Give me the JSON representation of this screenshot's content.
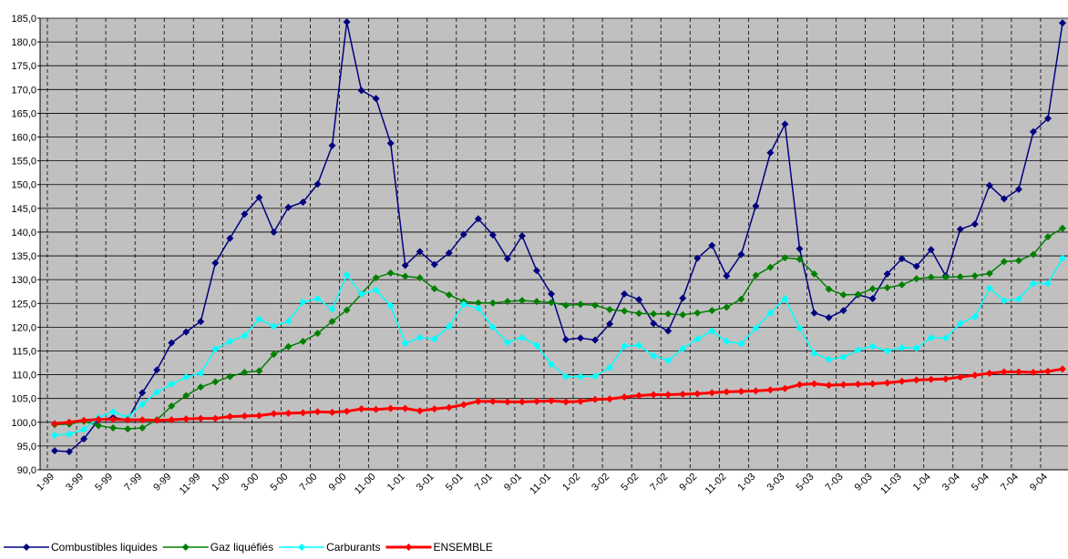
{
  "chart_data": {
    "type": "line",
    "categories": [
      "1-99",
      null,
      "3-99",
      null,
      "5-99",
      null,
      "7-99",
      null,
      "9-99",
      null,
      "11-99",
      null,
      "1-00",
      null,
      "3-00",
      null,
      "5-00",
      null,
      "7-00",
      null,
      "9-00",
      null,
      "11-00",
      null,
      "1-01",
      null,
      "3-01",
      null,
      "5-01",
      null,
      "7-01",
      null,
      "9-01",
      null,
      "11-01",
      null,
      "1-02",
      null,
      "3-02",
      null,
      "5-02",
      null,
      "7-02",
      null,
      "9-02",
      null,
      "11-02",
      null,
      "1-03",
      null,
      "3-03",
      null,
      "5-03",
      null,
      "7-03",
      null,
      "9-03",
      null,
      "11-03",
      null,
      "1-04",
      null,
      "3-04",
      null,
      "5-04",
      null,
      "7-04",
      null,
      "9-04",
      null
    ],
    "series": [
      {
        "name": "Combustibles liquides",
        "color": "#000080",
        "values": [
          94.0,
          93.8,
          96.5,
          100.5,
          101.0,
          100.5,
          106.2,
          111.0,
          116.7,
          119.0,
          121.2,
          133.5,
          138.7,
          143.8,
          147.3,
          140.0,
          145.2,
          146.3,
          150.1,
          158.2,
          184.2,
          169.8,
          168.1,
          158.7,
          133.0,
          135.9,
          133.2,
          135.6,
          139.5,
          142.8,
          139.4,
          134.4,
          139.2,
          131.9,
          127.0,
          117.4,
          117.7,
          117.3,
          120.7,
          127.0,
          125.8,
          120.8,
          119.2,
          126.1,
          134.5,
          137.2,
          130.8,
          135.3,
          145.5,
          156.7,
          162.7,
          136.5,
          123.0,
          122.0,
          123.5,
          126.8,
          126.0,
          131.2,
          134.4,
          132.8,
          136.3,
          130.8,
          140.6,
          141.7,
          149.8,
          147.0,
          149.0,
          161.1,
          163.9,
          184.0
        ]
      },
      {
        "name": "Gaz liquéfiés",
        "color": "#008000",
        "values": [
          99.5,
          99.6,
          100.2,
          99.3,
          98.8,
          98.6,
          98.8,
          100.5,
          103.4,
          105.6,
          107.4,
          108.5,
          109.6,
          110.5,
          110.8,
          114.3,
          115.9,
          117.0,
          118.7,
          121.2,
          123.6,
          127.0,
          130.4,
          131.4,
          130.7,
          130.4,
          128.1,
          126.8,
          125.4,
          125.1,
          125.1,
          125.4,
          125.6,
          125.4,
          125.2,
          124.6,
          124.8,
          124.6,
          123.7,
          123.4,
          122.9,
          122.8,
          122.8,
          122.6,
          123.0,
          123.5,
          124.2,
          125.9,
          130.9,
          132.6,
          134.6,
          134.3,
          131.2,
          128.0,
          126.8,
          126.9,
          128.1,
          128.3,
          128.9,
          130.2,
          130.5,
          130.5,
          130.6,
          130.8,
          131.3,
          133.8,
          134.0,
          135.3,
          139.0,
          140.8
        ]
      },
      {
        "name": "Carburants",
        "color": "#00ffff",
        "values": [
          97.3,
          97.5,
          98.5,
          101.0,
          102.2,
          101.0,
          103.8,
          106.3,
          108.0,
          109.5,
          110.3,
          115.4,
          117.0,
          118.2,
          121.7,
          120.2,
          121.2,
          125.3,
          126.0,
          123.8,
          131.0,
          127.0,
          127.8,
          124.5,
          116.6,
          117.8,
          117.5,
          120.2,
          124.8,
          124.0,
          120.0,
          116.8,
          117.8,
          116.2,
          112.2,
          109.6,
          109.6,
          109.7,
          111.5,
          116.0,
          116.2,
          114.0,
          113.0,
          115.5,
          117.5,
          119.2,
          117.0,
          116.5,
          119.8,
          123.0,
          126.0,
          119.8,
          114.5,
          113.2,
          113.7,
          115.2,
          116.0,
          115.0,
          115.7,
          115.6,
          117.8,
          117.7,
          120.8,
          122.2,
          128.2,
          125.6,
          125.9,
          129.2,
          129.2,
          134.5
        ]
      },
      {
        "name": "ENSEMBLE",
        "color": "#ff0000",
        "values": [
          99.7,
          100.0,
          100.4,
          100.6,
          100.6,
          100.5,
          100.5,
          100.4,
          100.5,
          100.7,
          100.8,
          100.8,
          101.2,
          101.3,
          101.4,
          101.8,
          101.9,
          102.0,
          102.2,
          102.1,
          102.3,
          102.8,
          102.7,
          102.9,
          102.9,
          102.4,
          102.8,
          103.1,
          103.7,
          104.4,
          104.4,
          104.3,
          104.3,
          104.4,
          104.5,
          104.3,
          104.4,
          104.8,
          104.9,
          105.3,
          105.6,
          105.8,
          105.8,
          105.9,
          106.0,
          106.2,
          106.4,
          106.5,
          106.6,
          106.8,
          107.1,
          107.9,
          108.1,
          107.8,
          107.9,
          108.0,
          108.1,
          108.3,
          108.6,
          108.9,
          109.0,
          109.1,
          109.5,
          109.9,
          110.3,
          110.6,
          110.6,
          110.5,
          110.7,
          111.2
        ]
      }
    ],
    "ylim": [
      90,
      185
    ],
    "yticks": [
      {
        "value": 90,
        "label": "90,0"
      },
      {
        "value": 95,
        "label": "95,0"
      },
      {
        "value": 100,
        "label": "100,0"
      },
      {
        "value": 105,
        "label": "105,0"
      },
      {
        "value": 110,
        "label": "110,0"
      },
      {
        "value": 115,
        "label": "115,0"
      },
      {
        "value": 120,
        "label": "120,0"
      },
      {
        "value": 125,
        "label": "125,0"
      },
      {
        "value": 130,
        "label": "130,0"
      },
      {
        "value": 135,
        "label": "135,0"
      },
      {
        "value": 140,
        "label": "140,0"
      },
      {
        "value": 145,
        "label": "145,0"
      },
      {
        "value": 150,
        "label": "150,0"
      },
      {
        "value": 155,
        "label": "155,0"
      },
      {
        "value": 160,
        "label": "160,0"
      },
      {
        "value": 165,
        "label": "165,0"
      },
      {
        "value": 170,
        "label": "170,0"
      },
      {
        "value": 175,
        "label": "175,0"
      },
      {
        "value": 180,
        "label": "180,0"
      },
      {
        "value": 185,
        "label": "185,0"
      }
    ],
    "grid": true,
    "legend": "bottom-left"
  }
}
